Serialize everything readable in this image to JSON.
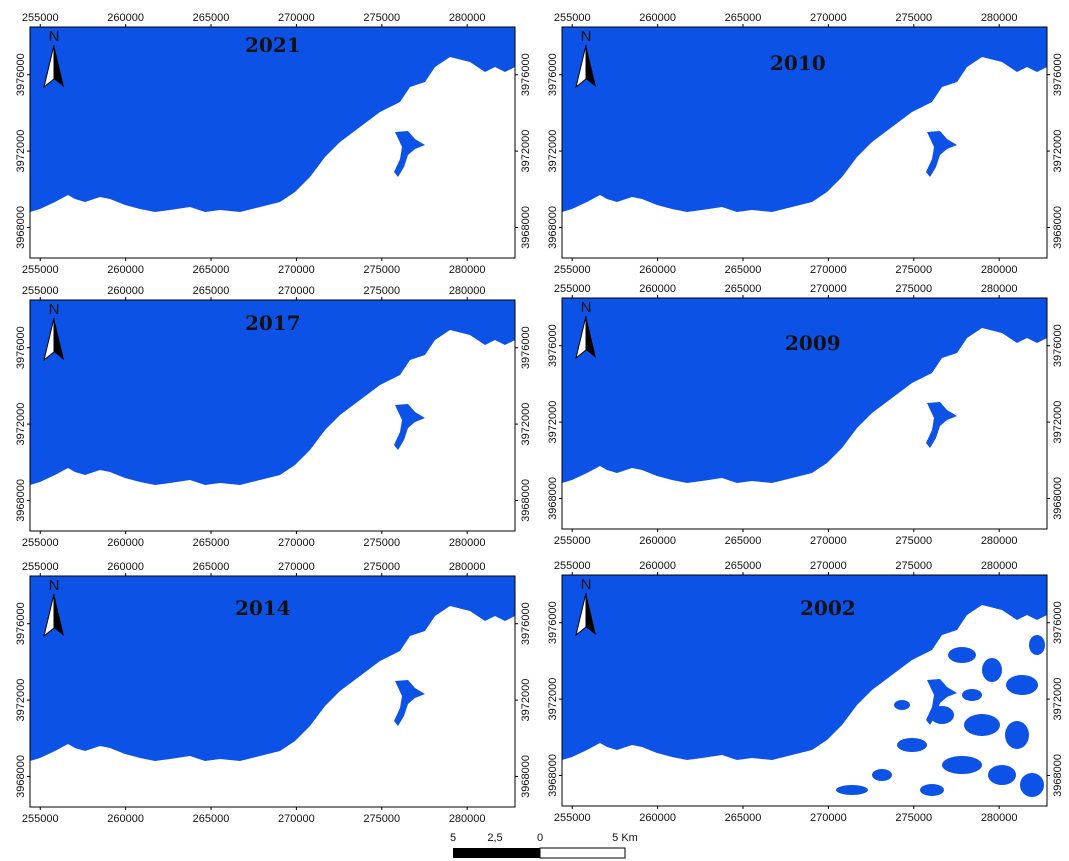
{
  "map_figure": {
    "xlim": [
      254400,
      282800
    ],
    "ylim": [
      3966400,
      3978500
    ],
    "xticks": [
      255000,
      260000,
      265000,
      270000,
      275000,
      280000
    ],
    "yticks": [
      3968000,
      3972000,
      3976000
    ],
    "north": "N",
    "sea_color": "#0d52e6",
    "panels": [
      {
        "year": "2021"
      },
      {
        "year": "2010"
      },
      {
        "year": "2017"
      },
      {
        "year": "2009"
      },
      {
        "year": "2014"
      },
      {
        "year": "2002"
      }
    ],
    "scale_bar": {
      "labels": [
        "5",
        "2,5",
        "0",
        "5 Km"
      ]
    }
  }
}
